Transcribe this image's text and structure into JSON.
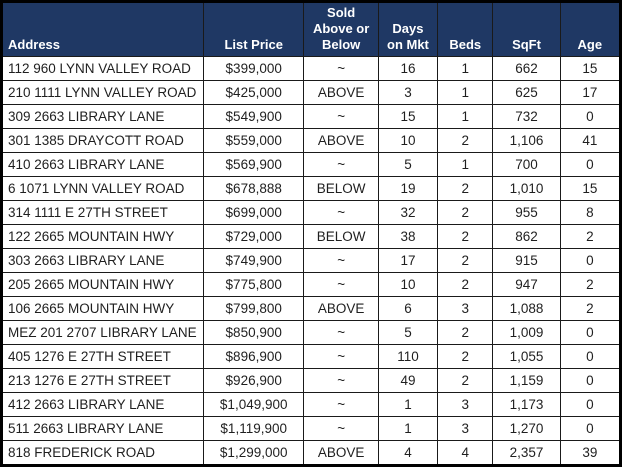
{
  "colors": {
    "header_bg": "#1F3864",
    "header_text": "#FFFFFF",
    "grid_line": "#1A1A1A",
    "body_text": "#1F1F1F",
    "row_bg": "#FFFFFF"
  },
  "table": {
    "columns": [
      {
        "key": "address",
        "label": "Address",
        "align": "left"
      },
      {
        "key": "list_price",
        "label": "List Price",
        "align": "center"
      },
      {
        "key": "sold_above_or_below",
        "label": "Sold\nAbove or\nBelow",
        "align": "center"
      },
      {
        "key": "days_on_mkt",
        "label": "Days\non Mkt",
        "align": "center"
      },
      {
        "key": "beds",
        "label": "Beds",
        "align": "center"
      },
      {
        "key": "sqft",
        "label": "SqFt",
        "align": "center"
      },
      {
        "key": "age",
        "label": "Age",
        "align": "center"
      }
    ],
    "rows": [
      {
        "address": "112 960 LYNN VALLEY ROAD",
        "list_price": "$399,000",
        "sold_above_or_below": "~",
        "days_on_mkt": "16",
        "beds": "1",
        "sqft": "662",
        "age": "15"
      },
      {
        "address": "210 1111 LYNN VALLEY ROAD",
        "list_price": "$425,000",
        "sold_above_or_below": "ABOVE",
        "days_on_mkt": "3",
        "beds": "1",
        "sqft": "625",
        "age": "17"
      },
      {
        "address": "309 2663 LIBRARY LANE",
        "list_price": "$549,900",
        "sold_above_or_below": "~",
        "days_on_mkt": "15",
        "beds": "1",
        "sqft": "732",
        "age": "0"
      },
      {
        "address": "301 1385 DRAYCOTT ROAD",
        "list_price": "$559,000",
        "sold_above_or_below": "ABOVE",
        "days_on_mkt": "10",
        "beds": "2",
        "sqft": "1,106",
        "age": "41"
      },
      {
        "address": "410 2663 LIBRARY LANE",
        "list_price": "$569,900",
        "sold_above_or_below": "~",
        "days_on_mkt": "5",
        "beds": "1",
        "sqft": "700",
        "age": "0"
      },
      {
        "address": "6 1071 LYNN VALLEY ROAD",
        "list_price": "$678,888",
        "sold_above_or_below": "BELOW",
        "days_on_mkt": "19",
        "beds": "2",
        "sqft": "1,010",
        "age": "15"
      },
      {
        "address": "314 1111 E 27TH STREET",
        "list_price": "$699,000",
        "sold_above_or_below": "~",
        "days_on_mkt": "32",
        "beds": "2",
        "sqft": "955",
        "age": "8"
      },
      {
        "address": "122 2665 MOUNTAIN HWY",
        "list_price": "$729,000",
        "sold_above_or_below": "BELOW",
        "days_on_mkt": "38",
        "beds": "2",
        "sqft": "862",
        "age": "2"
      },
      {
        "address": "303 2663 LIBRARY LANE",
        "list_price": "$749,900",
        "sold_above_or_below": "~",
        "days_on_mkt": "17",
        "beds": "2",
        "sqft": "915",
        "age": "0"
      },
      {
        "address": "205 2665 MOUNTAIN HWY",
        "list_price": "$775,800",
        "sold_above_or_below": "~",
        "days_on_mkt": "10",
        "beds": "2",
        "sqft": "947",
        "age": "2"
      },
      {
        "address": "106 2665 MOUNTAIN HWY",
        "list_price": "$799,800",
        "sold_above_or_below": "ABOVE",
        "days_on_mkt": "6",
        "beds": "3",
        "sqft": "1,088",
        "age": "2"
      },
      {
        "address": "MEZ 201 2707 LIBRARY LANE",
        "list_price": "$850,900",
        "sold_above_or_below": "~",
        "days_on_mkt": "5",
        "beds": "2",
        "sqft": "1,009",
        "age": "0"
      },
      {
        "address": "405 1276 E 27TH STREET",
        "list_price": "$896,900",
        "sold_above_or_below": "~",
        "days_on_mkt": "110",
        "beds": "2",
        "sqft": "1,055",
        "age": "0"
      },
      {
        "address": "213 1276 E 27TH STREET",
        "list_price": "$926,900",
        "sold_above_or_below": "~",
        "days_on_mkt": "49",
        "beds": "2",
        "sqft": "1,159",
        "age": "0"
      },
      {
        "address": "412 2663 LIBRARY LANE",
        "list_price": "$1,049,900",
        "sold_above_or_below": "~",
        "days_on_mkt": "1",
        "beds": "3",
        "sqft": "1,173",
        "age": "0"
      },
      {
        "address": "511 2663 LIBRARY LANE",
        "list_price": "$1,119,900",
        "sold_above_or_below": "~",
        "days_on_mkt": "1",
        "beds": "3",
        "sqft": "1,270",
        "age": "0"
      },
      {
        "address": "818 FREDERICK ROAD",
        "list_price": "$1,299,000",
        "sold_above_or_below": "ABOVE",
        "days_on_mkt": "4",
        "beds": "4",
        "sqft": "2,357",
        "age": "39"
      }
    ]
  }
}
